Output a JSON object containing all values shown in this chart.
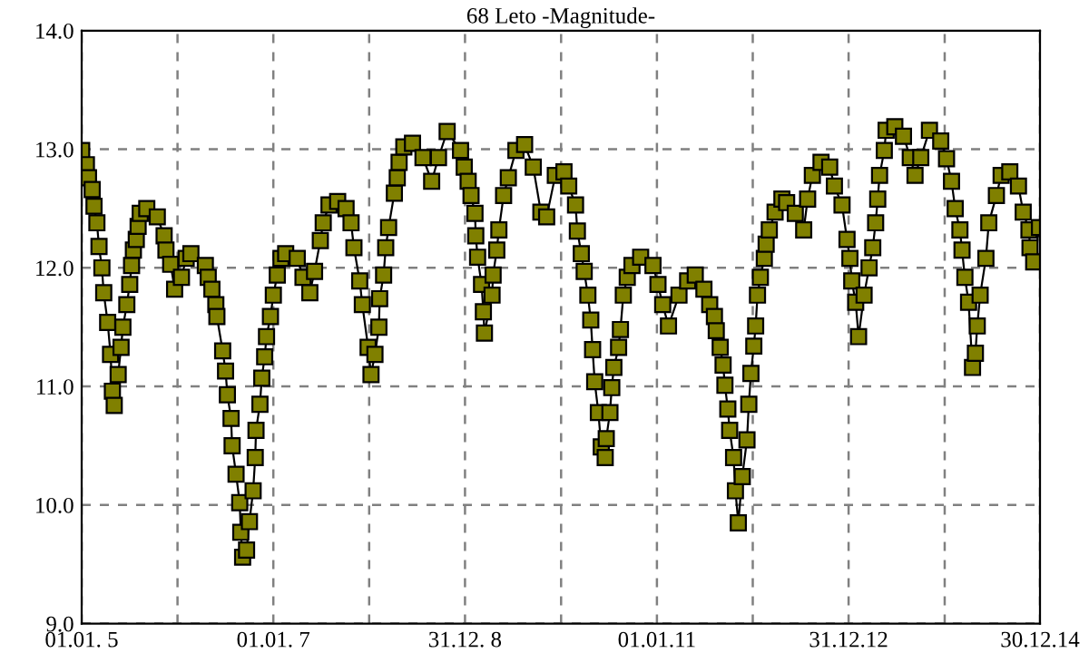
{
  "chart_data": {
    "type": "line",
    "title": "68 Leto -Magnitude-",
    "marker": "square",
    "line_style": "solid",
    "grid": true,
    "xlim": [
      "2005-01-01",
      "2014-12-30"
    ],
    "ylim": [
      9.0,
      14.0
    ],
    "xticks": [
      {
        "value": "2005-01-01",
        "label": "01.01. 5"
      },
      {
        "value": "2006-01-01",
        "label": null
      },
      {
        "value": "2007-01-01",
        "label": "01.01. 7"
      },
      {
        "value": "2008-01-01",
        "label": null
      },
      {
        "value": "2008-12-31",
        "label": "31.12. 8"
      },
      {
        "value": "2010-01-01",
        "label": null
      },
      {
        "value": "2011-01-01",
        "label": "01.01.11"
      },
      {
        "value": "2012-01-01",
        "label": null
      },
      {
        "value": "2012-12-31",
        "label": "31.12.12"
      },
      {
        "value": "2014-01-01",
        "label": null
      },
      {
        "value": "2014-12-30",
        "label": "30.12.14"
      }
    ],
    "yticks": [
      {
        "value": 9,
        "label": "9.0"
      },
      {
        "value": 10,
        "label": "10.0"
      },
      {
        "value": 11,
        "label": "11.0"
      },
      {
        "value": 12,
        "label": "12.0"
      },
      {
        "value": 13,
        "label": "13.0"
      },
      {
        "value": 14,
        "label": "14.0"
      }
    ],
    "series": [
      {
        "color": "#808000",
        "x": [
          "2005-01-01",
          "2005-01-19",
          "2005-01-27",
          "2005-02-10",
          "2005-02-17",
          "2005-02-28",
          "2005-03-08",
          "2005-03-19",
          "2005-03-26",
          "2005-04-10",
          "2005-04-21",
          "2005-04-28",
          "2005-05-05",
          "2005-05-20",
          "2005-05-31",
          "2005-06-07",
          "2005-06-22",
          "2005-07-03",
          "2005-07-10",
          "2005-07-17",
          "2005-07-28",
          "2005-08-04",
          "2005-08-12",
          "2005-09-06",
          "2005-10-16",
          "2005-11-11",
          "2005-11-18",
          "2005-12-06",
          "2005-12-21",
          "2006-01-16",
          "2006-02-03",
          "2006-02-21",
          "2006-04-17",
          "2006-04-28",
          "2006-05-12",
          "2006-05-27",
          "2006-05-31",
          "2006-06-22",
          "2006-07-03",
          "2006-07-10",
          "2006-07-24",
          "2006-07-28",
          "2006-08-12",
          "2006-08-26",
          "2006-08-30",
          "2006-09-06",
          "2006-09-21",
          "2006-10-02",
          "2006-10-16",
          "2006-10-24",
          "2006-10-27",
          "2006-11-11",
          "2006-11-18",
          "2006-11-29",
          "2006-12-06",
          "2006-12-21",
          "2007-01-01",
          "2007-01-16",
          "2007-01-30",
          "2007-02-17",
          "2007-04-02",
          "2007-04-24",
          "2007-05-20",
          "2007-06-07",
          "2007-06-29",
          "2007-07-10",
          "2007-08-01",
          "2007-09-03",
          "2007-10-05",
          "2007-10-24",
          "2007-11-04",
          "2007-11-26",
          "2007-12-06",
          "2007-12-28",
          "2008-01-08",
          "2008-01-23",
          "2008-02-07",
          "2008-02-10",
          "2008-02-25",
          "2008-03-04",
          "2008-03-15",
          "2008-04-06",
          "2008-04-17",
          "2008-04-24",
          "2008-05-12",
          "2008-06-14",
          "2008-07-24",
          "2008-08-26",
          "2008-09-21",
          "2008-10-24",
          "2008-12-14",
          "2008-12-28",
          "2009-01-12",
          "2009-01-23",
          "2009-02-07",
          "2009-02-10",
          "2009-02-17",
          "2009-03-04",
          "2009-03-11",
          "2009-03-15",
          "2009-04-13",
          "2009-04-17",
          "2009-05-01",
          "2009-05-09",
          "2009-05-27",
          "2009-06-14",
          "2009-07-13",
          "2009-08-15",
          "2009-09-17",
          "2009-10-16",
          "2009-11-07",
          "2009-12-10",
          "2010-01-12",
          "2010-01-30",
          "2010-02-25",
          "2010-03-04",
          "2010-03-19",
          "2010-03-30",
          "2010-04-13",
          "2010-04-24",
          "2010-05-01",
          "2010-05-09",
          "2010-05-23",
          "2010-06-03",
          "2010-06-18",
          "2010-06-22",
          "2010-07-06",
          "2010-07-13",
          "2010-07-21",
          "2010-08-08",
          "2010-08-15",
          "2010-08-26",
          "2010-09-10",
          "2010-09-28",
          "2010-10-31",
          "2010-12-17",
          "2011-01-05",
          "2011-01-23",
          "2011-02-14",
          "2011-03-26",
          "2011-04-28",
          "2011-05-27",
          "2011-06-29",
          "2011-07-21",
          "2011-08-08",
          "2011-08-15",
          "2011-08-30",
          "2011-09-10",
          "2011-09-17",
          "2011-09-28",
          "2011-10-05",
          "2011-10-20",
          "2011-10-27",
          "2011-11-07",
          "2011-11-22",
          "2011-12-10",
          "2011-12-17",
          "2011-12-25",
          "2012-01-05",
          "2012-01-12",
          "2012-01-19",
          "2012-01-30",
          "2012-02-14",
          "2012-02-21",
          "2012-03-04",
          "2012-03-26",
          "2012-04-21",
          "2012-05-09",
          "2012-06-11",
          "2012-07-13",
          "2012-07-28",
          "2012-08-15",
          "2012-09-17",
          "2012-10-20",
          "2012-11-07",
          "2012-12-06",
          "2012-12-25",
          "2013-01-05",
          "2013-01-12",
          "2013-01-27",
          "2013-02-07",
          "2013-02-28",
          "2013-03-19",
          "2013-04-02",
          "2013-04-13",
          "2013-04-21",
          "2013-04-28",
          "2013-05-16",
          "2013-05-23",
          "2013-06-25",
          "2013-07-28",
          "2013-08-23",
          "2013-09-10",
          "2013-10-02",
          "2013-11-04",
          "2013-12-17",
          "2014-01-08",
          "2014-01-27",
          "2014-02-10",
          "2014-02-28",
          "2014-03-08",
          "2014-03-19",
          "2014-04-02",
          "2014-04-17",
          "2014-04-28",
          "2014-05-05",
          "2014-05-16",
          "2014-06-07",
          "2014-06-18",
          "2014-07-17",
          "2014-08-04",
          "2014-09-06",
          "2014-10-09",
          "2014-10-27",
          "2014-11-18",
          "2014-11-22",
          "2014-12-06",
          "2014-12-28"
        ],
        "values": [
          12.99,
          12.87,
          12.76,
          12.66,
          12.52,
          12.38,
          12.18,
          12.0,
          11.79,
          11.54,
          11.27,
          10.96,
          10.84,
          11.1,
          11.33,
          11.5,
          11.69,
          11.86,
          12.02,
          12.15,
          12.24,
          12.35,
          12.46,
          12.5,
          12.43,
          12.27,
          12.15,
          12.03,
          11.82,
          11.92,
          12.08,
          12.12,
          12.02,
          11.92,
          11.82,
          11.69,
          11.59,
          11.3,
          11.13,
          10.93,
          10.73,
          10.5,
          10.26,
          10.02,
          9.77,
          9.56,
          9.62,
          9.86,
          10.12,
          10.4,
          10.63,
          10.85,
          11.07,
          11.25,
          11.42,
          11.59,
          11.77,
          11.94,
          12.08,
          12.12,
          12.08,
          11.92,
          11.79,
          11.97,
          12.23,
          12.38,
          12.53,
          12.56,
          12.5,
          12.38,
          12.17,
          11.89,
          11.69,
          11.33,
          11.1,
          11.27,
          11.5,
          11.74,
          11.94,
          12.17,
          12.34,
          12.63,
          12.76,
          12.89,
          13.02,
          13.05,
          12.93,
          12.73,
          12.93,
          13.15,
          12.99,
          12.85,
          12.73,
          12.61,
          12.46,
          12.27,
          12.09,
          11.86,
          11.63,
          11.45,
          11.77,
          11.94,
          12.15,
          12.32,
          12.61,
          12.76,
          12.99,
          13.04,
          12.85,
          12.47,
          12.43,
          12.78,
          12.81,
          12.69,
          12.53,
          12.31,
          12.12,
          11.97,
          11.77,
          11.56,
          11.31,
          11.04,
          10.78,
          10.49,
          10.4,
          10.56,
          10.78,
          10.99,
          11.16,
          11.33,
          11.48,
          11.77,
          11.92,
          12.02,
          12.09,
          12.02,
          11.86,
          11.69,
          11.51,
          11.77,
          11.89,
          11.94,
          11.82,
          11.69,
          11.59,
          11.47,
          11.33,
          11.18,
          11.01,
          10.81,
          10.63,
          10.4,
          10.12,
          9.85,
          10.24,
          10.55,
          10.85,
          11.11,
          11.34,
          11.51,
          11.77,
          11.92,
          12.08,
          12.2,
          12.32,
          12.47,
          12.58,
          12.55,
          12.46,
          12.32,
          12.58,
          12.78,
          12.89,
          12.85,
          12.69,
          12.53,
          12.24,
          12.08,
          11.89,
          11.71,
          11.42,
          11.77,
          12.0,
          12.17,
          12.38,
          12.58,
          12.78,
          12.99,
          13.16,
          13.19,
          13.11,
          12.93,
          12.78,
          12.93,
          13.16,
          13.07,
          12.92,
          12.73,
          12.5,
          12.32,
          12.15,
          11.92,
          11.71,
          11.16,
          11.28,
          11.51,
          11.77,
          12.08,
          12.38,
          12.61,
          12.78,
          12.81,
          12.69,
          12.47,
          12.32,
          12.17,
          12.05,
          12.34
        ]
      }
    ]
  }
}
